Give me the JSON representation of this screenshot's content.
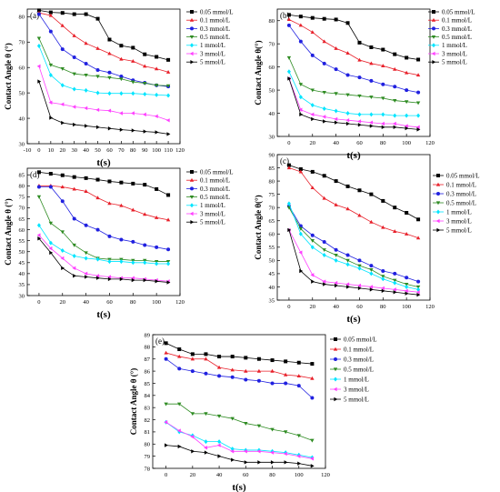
{
  "series_styles": [
    {
      "color": "#000000",
      "marker": "square"
    },
    {
      "color": "#e8202a",
      "marker": "triangle-up"
    },
    {
      "color": "#2020e0",
      "marker": "circle"
    },
    {
      "color": "#2e8b22",
      "marker": "triangle-down"
    },
    {
      "color": "#00e5ff",
      "marker": "diamond"
    },
    {
      "color": "#ff40ff",
      "marker": "triangle-left"
    },
    {
      "color": "#000000",
      "marker": "triangle-right"
    }
  ],
  "chart_data": [
    {
      "type": "line",
      "panel_label": "(a)",
      "xlabel": "t(s)",
      "ylabel": "Contact Angle θ (°)",
      "xlim": [
        -10,
        120
      ],
      "ylim": [
        30,
        83
      ],
      "xticks": [
        -10,
        0,
        10,
        20,
        30,
        40,
        50,
        60,
        70,
        80,
        90,
        100,
        110,
        120
      ],
      "yticks": [
        30,
        40,
        50,
        60,
        70,
        80
      ],
      "x": [
        0,
        10,
        20,
        30,
        40,
        50,
        60,
        70,
        80,
        90,
        100,
        110
      ],
      "series": [
        {
          "name": "0.05 mmol/L",
          "values": [
            82.5,
            81.7,
            81.5,
            81.0,
            81.0,
            79.2,
            71.0,
            68.6,
            67.8,
            65.2,
            64.2,
            63.0
          ]
        },
        {
          "name": "0.1 mmol/L",
          "values": [
            81.5,
            80.5,
            76.5,
            72.5,
            69.5,
            67.5,
            65.5,
            63.3,
            62.5,
            60.5,
            59.5,
            58.2
          ]
        },
        {
          "name": "0.3 mmol/L",
          "values": [
            81.0,
            74.2,
            67.2,
            64.0,
            61.5,
            59.0,
            58.0,
            56.5,
            55.0,
            54.0,
            53.0,
            52.5
          ]
        },
        {
          "name": "0.5 mmol/L",
          "values": [
            71.5,
            61.0,
            59.5,
            57.5,
            57.0,
            56.5,
            56.0,
            55.5,
            54.3,
            53.8,
            53.0,
            52.8
          ]
        },
        {
          "name": "1 mmol/L",
          "values": [
            68.5,
            57.0,
            53.0,
            51.5,
            51.0,
            50.0,
            49.8,
            49.8,
            49.8,
            49.5,
            49.2,
            49.0
          ]
        },
        {
          "name": "3 mmol/L",
          "values": [
            60.5,
            46.2,
            45.5,
            44.5,
            44.0,
            43.3,
            43.0,
            42.0,
            42.0,
            41.5,
            40.8,
            39.2
          ]
        },
        {
          "name": "5 mmol/L",
          "values": [
            54.5,
            40.2,
            38.2,
            37.5,
            37.0,
            36.5,
            36.0,
            35.5,
            35.2,
            34.8,
            34.5,
            33.8
          ]
        }
      ]
    },
    {
      "type": "line",
      "panel_label": "(b)",
      "xlabel": "t(s)",
      "ylabel": "Contact Angle θ(°)",
      "xlim": [
        -10,
        120
      ],
      "ylim": [
        30,
        85
      ],
      "xticks": [
        0,
        20,
        40,
        60,
        80,
        100,
        120
      ],
      "yticks": [
        30,
        40,
        50,
        60,
        70,
        80
      ],
      "x": [
        0,
        10,
        20,
        30,
        40,
        50,
        60,
        70,
        80,
        90,
        100,
        110
      ],
      "series": [
        {
          "name": "0.05 mmol/L",
          "values": [
            82.5,
            81.8,
            81.2,
            80.8,
            80.5,
            79.0,
            70.5,
            68.5,
            67.5,
            65.5,
            64.0,
            63.2
          ]
        },
        {
          "name": "0.1 mmol/L",
          "values": [
            80.5,
            78.0,
            75.0,
            71.0,
            68.0,
            66.0,
            63.0,
            61.5,
            60.5,
            59.0,
            57.5,
            56.5
          ]
        },
        {
          "name": "0.3 mmol/L",
          "values": [
            78.0,
            71.0,
            65.0,
            61.5,
            59.0,
            56.5,
            55.5,
            54.0,
            52.5,
            51.5,
            50.0,
            49.0
          ]
        },
        {
          "name": "0.5 mmol/L",
          "values": [
            64.0,
            52.5,
            50.0,
            49.0,
            48.5,
            48.0,
            47.5,
            47.0,
            46.5,
            45.5,
            45.0,
            44.5
          ]
        },
        {
          "name": "1 mmol/L",
          "values": [
            58.0,
            47.0,
            43.5,
            42.0,
            41.0,
            40.0,
            39.5,
            39.5,
            39.5,
            39.0,
            39.0,
            39.0
          ]
        },
        {
          "name": "3 mmol/L",
          "values": [
            55.0,
            41.5,
            39.5,
            38.5,
            37.5,
            37.0,
            36.5,
            36.0,
            35.5,
            35.5,
            34.5,
            34.0
          ]
        },
        {
          "name": "5 mmol/L",
          "values": [
            55.0,
            39.5,
            37.5,
            36.5,
            36.0,
            35.5,
            35.0,
            34.5,
            34.0,
            34.0,
            33.5,
            33.0
          ]
        }
      ]
    },
    {
      "type": "line",
      "panel_label": "(d)",
      "xlabel": "t(s)",
      "ylabel": "Contact Angle θ (°)",
      "xlim": [
        -10,
        120
      ],
      "ylim": [
        30,
        88
      ],
      "xticks": [
        0,
        20,
        40,
        60,
        80,
        100,
        120
      ],
      "yticks": [
        30,
        35,
        40,
        45,
        50,
        55,
        60,
        65,
        70,
        75,
        80,
        85
      ],
      "x": [
        0,
        10,
        20,
        30,
        40,
        50,
        60,
        70,
        80,
        90,
        100,
        110
      ],
      "series": [
        {
          "name": "0.05 mmol/L",
          "values": [
            86.2,
            85.5,
            84.8,
            84.0,
            83.5,
            82.8,
            82.0,
            81.5,
            81.0,
            80.5,
            78.5,
            75.8
          ]
        },
        {
          "name": "0.1 mmol/L",
          "values": [
            80.0,
            80.0,
            79.5,
            78.5,
            77.5,
            74.5,
            72.0,
            71.0,
            69.0,
            67.0,
            65.5,
            64.5
          ]
        },
        {
          "name": "0.3 mmol/L",
          "values": [
            79.5,
            79.5,
            73.0,
            65.0,
            62.0,
            60.0,
            57.0,
            55.5,
            54.5,
            53.0,
            52.0,
            51.0
          ]
        },
        {
          "name": "0.5 mmol/L",
          "values": [
            75.0,
            63.0,
            59.0,
            53.0,
            49.5,
            47.0,
            46.5,
            46.5,
            46.0,
            46.0,
            45.5,
            45.5
          ]
        },
        {
          "name": "1 mmol/L",
          "values": [
            62.0,
            54.0,
            50.5,
            48.0,
            47.0,
            46.5,
            45.5,
            45.5,
            45.0,
            45.0,
            44.5,
            44.5
          ]
        },
        {
          "name": "3 mmol/L",
          "values": [
            57.5,
            51.5,
            47.0,
            42.5,
            40.0,
            39.0,
            38.5,
            38.0,
            38.0,
            37.5,
            37.0,
            36.5
          ]
        },
        {
          "name": "5 mmol/L",
          "values": [
            56.0,
            49.5,
            42.5,
            39.0,
            38.5,
            38.0,
            37.5,
            37.5,
            37.0,
            37.0,
            36.5,
            36.0
          ]
        }
      ]
    },
    {
      "type": "line",
      "panel_label": "(c)",
      "xlabel": "t(s)",
      "ylabel": "Contact Angle θ(°)",
      "xlim": [
        -10,
        120
      ],
      "ylim": [
        35,
        90
      ],
      "xticks": [
        0,
        20,
        40,
        60,
        80,
        100,
        120
      ],
      "yticks": [
        35,
        40,
        45,
        50,
        55,
        60,
        65,
        70,
        75,
        80,
        85,
        90
      ],
      "x": [
        0,
        10,
        20,
        30,
        40,
        50,
        60,
        70,
        80,
        90,
        100,
        110
      ],
      "series": [
        {
          "name": "0.05 mmol/L",
          "values": [
            86.0,
            84.5,
            83.5,
            82.0,
            80.0,
            78.0,
            76.5,
            75.0,
            72.5,
            70.0,
            68.0,
            65.5
          ]
        },
        {
          "name": "0.1 mmol/L",
          "values": [
            85.0,
            83.5,
            77.5,
            73.5,
            71.0,
            69.5,
            67.0,
            64.5,
            62.5,
            61.0,
            60.0,
            58.5
          ]
        },
        {
          "name": "0.3 mmol/L",
          "values": [
            70.5,
            63.0,
            59.5,
            57.0,
            54.0,
            52.0,
            50.0,
            48.0,
            46.0,
            45.0,
            43.5,
            42.0
          ]
        },
        {
          "name": "0.5 mmol/L",
          "values": [
            70.0,
            62.0,
            57.5,
            54.0,
            52.0,
            50.0,
            48.0,
            46.5,
            44.0,
            42.5,
            41.0,
            40.0
          ]
        },
        {
          "name": "1 mmol/L",
          "values": [
            71.5,
            60.0,
            55.0,
            52.0,
            50.0,
            48.5,
            47.0,
            45.0,
            43.0,
            41.5,
            40.0,
            39.0
          ]
        },
        {
          "name": "3 mmol/L",
          "values": [
            61.5,
            53.0,
            44.5,
            42.0,
            41.5,
            41.0,
            40.5,
            40.0,
            39.5,
            39.0,
            38.5,
            38.0
          ]
        },
        {
          "name": "5 mmol/L",
          "values": [
            61.5,
            46.0,
            42.0,
            41.0,
            40.5,
            40.0,
            39.5,
            39.0,
            38.5,
            38.0,
            37.5,
            37.0
          ]
        }
      ]
    },
    {
      "type": "line",
      "panel_label": "(e)",
      "xlabel": "t(s)",
      "ylabel": "Contact Angle θ (°)",
      "xlim": [
        -10,
        120
      ],
      "ylim": [
        78,
        89
      ],
      "xticks": [
        0,
        20,
        40,
        60,
        80,
        100,
        120
      ],
      "yticks": [
        78,
        79,
        80,
        81,
        82,
        83,
        84,
        85,
        86,
        87,
        88,
        89
      ],
      "x": [
        0,
        10,
        20,
        30,
        40,
        50,
        60,
        70,
        80,
        90,
        100,
        110
      ],
      "series": [
        {
          "name": "0.05 mmol/L",
          "values": [
            88.3,
            87.8,
            87.4,
            87.4,
            87.2,
            87.2,
            87.1,
            87.0,
            86.9,
            86.8,
            86.7,
            86.6
          ]
        },
        {
          "name": "0.1 mmol/L",
          "values": [
            87.5,
            87.2,
            87.0,
            87.0,
            86.3,
            86.1,
            86.0,
            86.0,
            86.0,
            85.7,
            85.6,
            85.4
          ]
        },
        {
          "name": "0.3 mmol/L",
          "values": [
            87.0,
            86.2,
            86.0,
            85.8,
            85.6,
            85.5,
            85.3,
            85.2,
            85.0,
            85.0,
            84.8,
            83.8
          ]
        },
        {
          "name": "0.5 mmol/L",
          "values": [
            83.3,
            83.3,
            82.5,
            82.5,
            82.3,
            82.1,
            81.7,
            81.5,
            81.2,
            81.0,
            80.7,
            80.3
          ]
        },
        {
          "name": "1 mmol/L",
          "values": [
            81.8,
            81.0,
            80.7,
            80.2,
            80.2,
            79.6,
            79.5,
            79.5,
            79.4,
            79.3,
            79.1,
            78.9
          ]
        },
        {
          "name": "3 mmol/L",
          "values": [
            81.8,
            81.1,
            80.6,
            79.7,
            79.9,
            79.4,
            79.4,
            79.4,
            79.3,
            79.2,
            79.0,
            78.8
          ]
        },
        {
          "name": "5 mmol/L",
          "values": [
            79.9,
            79.8,
            79.4,
            79.3,
            79.0,
            78.7,
            78.5,
            78.5,
            78.5,
            78.5,
            78.4,
            78.2
          ]
        }
      ]
    }
  ]
}
